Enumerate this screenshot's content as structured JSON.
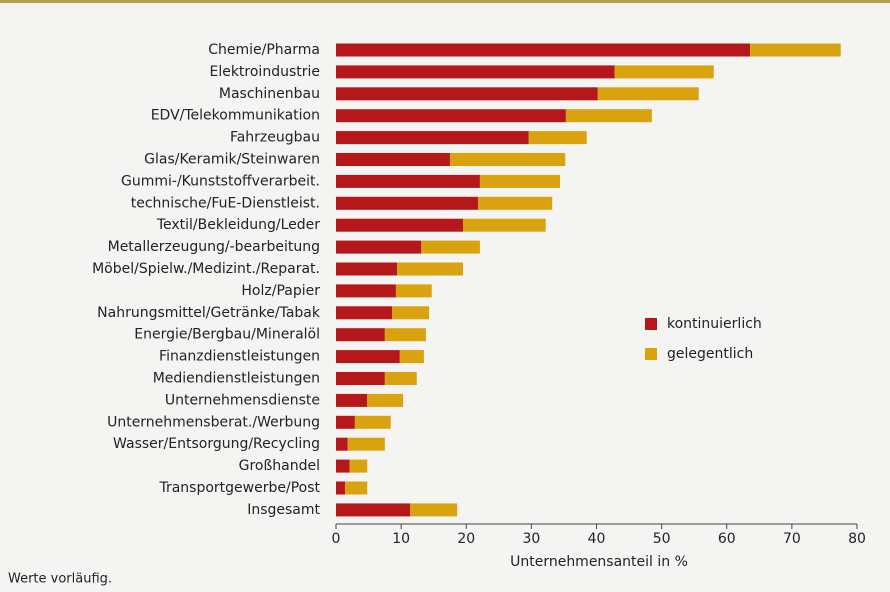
{
  "chart_data": {
    "type": "bar",
    "orientation": "horizontal",
    "stacked": true,
    "categories": [
      "Chemie/Pharma",
      "Elektroindustrie",
      "Maschinenbau",
      "EDV/Telekommunikation",
      "Fahrzeugbau",
      "Glas/Keramik/Steinwaren",
      "Gummi-/Kunststoffverarbeit.",
      "technische/FuE-Dienstleist.",
      "Textil/Bekleidung/Leder",
      "Metallerzeugung/-bearbeitung",
      "Möbel/Spielw./Medizint./Reparat.",
      "Holz/Papier",
      "Nahrungsmittel/Getränke/Tabak",
      "Energie/Bergbau/Mineralöl",
      "Finanzdienstleistungen",
      "Mediendienstleistungen",
      "Unternehmensdienste",
      "Unternehmensberat./Werbung",
      "Wasser/Entsorgung/Recycling",
      "Großhandel",
      "Transportgewerbe/Post",
      "Insgesamt"
    ],
    "series": [
      {
        "name": "kontinuierlich",
        "color": "#b5171b",
        "values": [
          63.6,
          42.8,
          40.2,
          35.3,
          29.6,
          17.5,
          22.1,
          21.8,
          19.5,
          13.1,
          9.4,
          9.2,
          8.6,
          7.5,
          9.8,
          7.5,
          4.8,
          2.9,
          1.8,
          2.1,
          1.4,
          11.4
        ]
      },
      {
        "name": "gelegentlich",
        "color": "#d9a30f",
        "values": [
          13.9,
          15.2,
          15.5,
          13.2,
          8.9,
          17.7,
          12.3,
          11.4,
          12.7,
          9.0,
          10.1,
          5.5,
          5.7,
          6.3,
          3.7,
          4.9,
          5.5,
          5.5,
          5.7,
          2.7,
          3.4,
          7.2
        ]
      }
    ],
    "xlim": [
      0,
      80
    ],
    "xticks": [
      0,
      10,
      20,
      30,
      40,
      50,
      60,
      70,
      80
    ],
    "xlabel": "Unternehmensanteil in %",
    "note": "Werte vorläufig."
  }
}
